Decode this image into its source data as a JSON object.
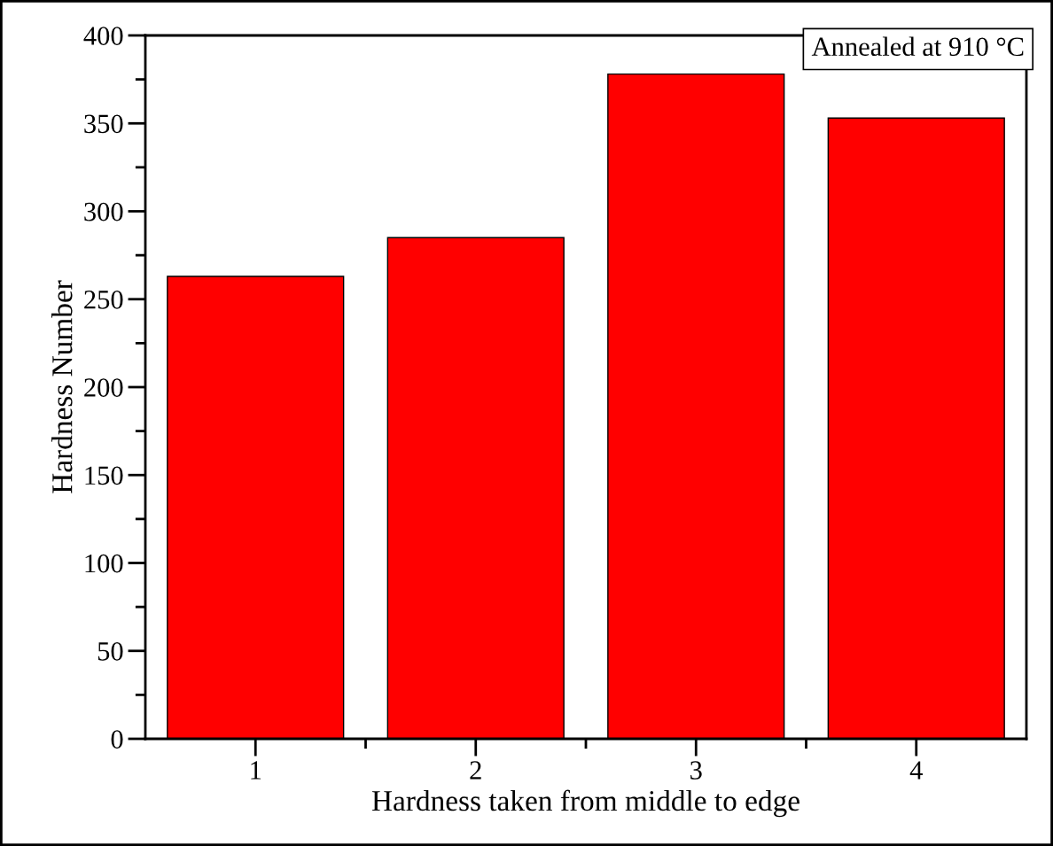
{
  "chart_data": {
    "type": "bar",
    "xlabel": "Hardness taken from middle to edge",
    "ylabel": "Hardness Number",
    "categories": [
      "1",
      "2",
      "3",
      "4"
    ],
    "values": [
      263,
      285,
      378,
      353
    ],
    "color": "#ff0000",
    "ylim": [
      0,
      400
    ],
    "yticks": [
      0,
      {
        "value": 25,
        "label": null
      },
      50,
      {
        "value": 75,
        "label": null
      },
      100,
      {
        "value": 125,
        "label": null
      },
      150,
      {
        "value": 175,
        "label": null
      },
      200,
      {
        "value": 225,
        "label": null
      },
      250,
      {
        "value": 275,
        "label": null
      },
      300,
      {
        "value": 325,
        "label": null
      },
      350,
      {
        "value": 375,
        "label": null
      },
      400
    ],
    "annotations": [
      "Annealed at 910 °C"
    ],
    "grid": false,
    "legend": false
  }
}
